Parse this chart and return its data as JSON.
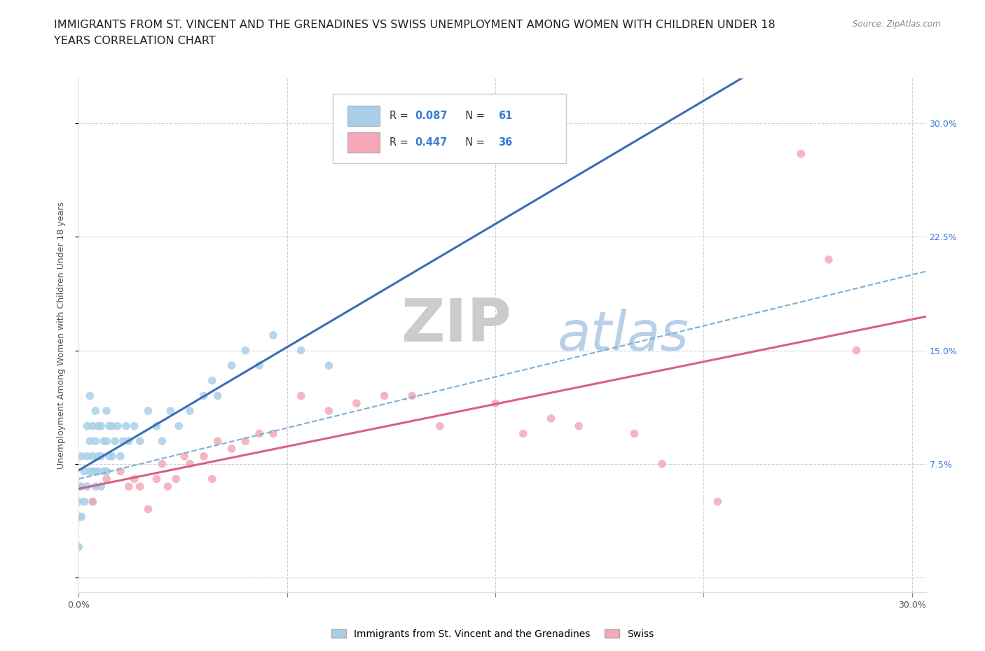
{
  "title_line1": "IMMIGRANTS FROM ST. VINCENT AND THE GRENADINES VS SWISS UNEMPLOYMENT AMONG WOMEN WITH CHILDREN UNDER 18",
  "title_line2": "YEARS CORRELATION CHART",
  "source": "Source: ZipAtlas.com",
  "ylabel": "Unemployment Among Women with Children Under 18 years",
  "xlim": [
    0.0,
    0.305
  ],
  "ylim": [
    -0.01,
    0.33
  ],
  "blue_scatter_color": "#A8D0E8",
  "blue_line_color": "#3A6DB5",
  "blue_dash_color": "#7AAFD4",
  "pink_scatter_color": "#F4A8B8",
  "pink_line_color": "#D95F82",
  "R_blue": 0.087,
  "N_blue": 61,
  "R_pink": 0.447,
  "N_pink": 36,
  "legend_label_blue": "Immigrants from St. Vincent and the Grenadines",
  "legend_label_pink": "Swiss",
  "watermark_zip": "ZIP",
  "watermark_atlas": "atlas",
  "grid_color": "#CCCCCC",
  "background_color": "#FFFFFF",
  "title_fontsize": 11.5,
  "tick_fontsize": 9,
  "accent_color": "#3A7BD5",
  "blue_x": [
    0.0,
    0.0,
    0.0,
    0.0,
    0.001,
    0.001,
    0.001,
    0.002,
    0.002,
    0.003,
    0.003,
    0.003,
    0.004,
    0.004,
    0.004,
    0.005,
    0.005,
    0.005,
    0.005,
    0.006,
    0.006,
    0.006,
    0.006,
    0.007,
    0.007,
    0.007,
    0.008,
    0.008,
    0.008,
    0.009,
    0.009,
    0.01,
    0.01,
    0.01,
    0.011,
    0.011,
    0.012,
    0.012,
    0.013,
    0.014,
    0.015,
    0.016,
    0.017,
    0.018,
    0.02,
    0.022,
    0.025,
    0.028,
    0.03,
    0.033,
    0.036,
    0.04,
    0.045,
    0.048,
    0.05,
    0.055,
    0.06,
    0.065,
    0.07,
    0.08,
    0.09
  ],
  "blue_y": [
    0.02,
    0.04,
    0.05,
    0.06,
    0.04,
    0.06,
    0.08,
    0.05,
    0.07,
    0.06,
    0.08,
    0.1,
    0.07,
    0.09,
    0.12,
    0.05,
    0.07,
    0.08,
    0.1,
    0.06,
    0.07,
    0.09,
    0.11,
    0.07,
    0.08,
    0.1,
    0.06,
    0.08,
    0.1,
    0.07,
    0.09,
    0.07,
    0.09,
    0.11,
    0.08,
    0.1,
    0.08,
    0.1,
    0.09,
    0.1,
    0.08,
    0.09,
    0.1,
    0.09,
    0.1,
    0.09,
    0.11,
    0.1,
    0.09,
    0.11,
    0.1,
    0.11,
    0.12,
    0.13,
    0.12,
    0.14,
    0.15,
    0.14,
    0.16,
    0.15,
    0.14
  ],
  "pink_x": [
    0.005,
    0.01,
    0.015,
    0.018,
    0.02,
    0.022,
    0.025,
    0.028,
    0.03,
    0.032,
    0.035,
    0.038,
    0.04,
    0.045,
    0.048,
    0.05,
    0.055,
    0.06,
    0.065,
    0.07,
    0.08,
    0.09,
    0.1,
    0.11,
    0.12,
    0.13,
    0.15,
    0.16,
    0.17,
    0.18,
    0.2,
    0.21,
    0.23,
    0.26,
    0.27,
    0.28
  ],
  "pink_y": [
    0.05,
    0.065,
    0.07,
    0.06,
    0.065,
    0.06,
    0.045,
    0.065,
    0.075,
    0.06,
    0.065,
    0.08,
    0.075,
    0.08,
    0.065,
    0.09,
    0.085,
    0.09,
    0.095,
    0.095,
    0.12,
    0.11,
    0.115,
    0.12,
    0.12,
    0.1,
    0.115,
    0.095,
    0.105,
    0.1,
    0.095,
    0.075,
    0.05,
    0.28,
    0.21,
    0.15
  ]
}
